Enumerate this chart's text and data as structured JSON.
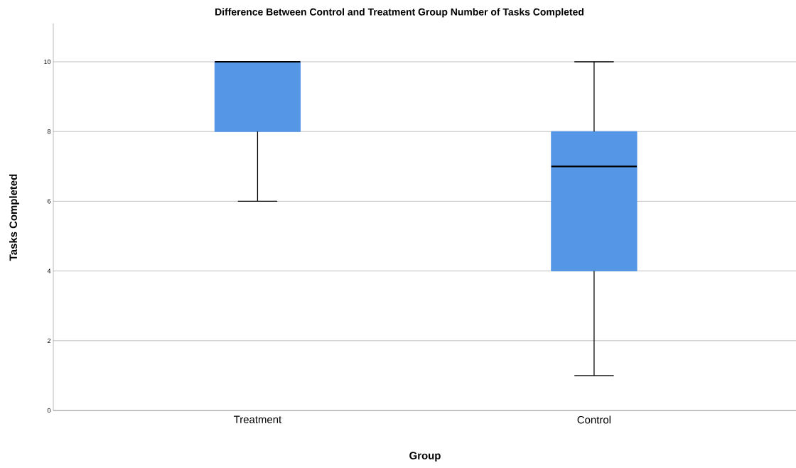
{
  "chart_data": {
    "type": "box",
    "title": "Difference Between Control and Treatment Group Number of Tasks Completed",
    "xlabel": "Group",
    "ylabel": "Tasks Completed",
    "categories": [
      "Treatment",
      "Control"
    ],
    "boxes": [
      {
        "low": 6,
        "q1": 8,
        "median": 10,
        "q3": 10,
        "high": 10
      },
      {
        "low": 1,
        "q1": 4,
        "median": 7,
        "q3": 8,
        "high": 10
      }
    ],
    "color": "#5596e6",
    "ylim": [
      0,
      11.1
    ],
    "yticks": [
      0,
      2,
      4,
      6,
      8,
      10
    ],
    "grid": "y"
  }
}
